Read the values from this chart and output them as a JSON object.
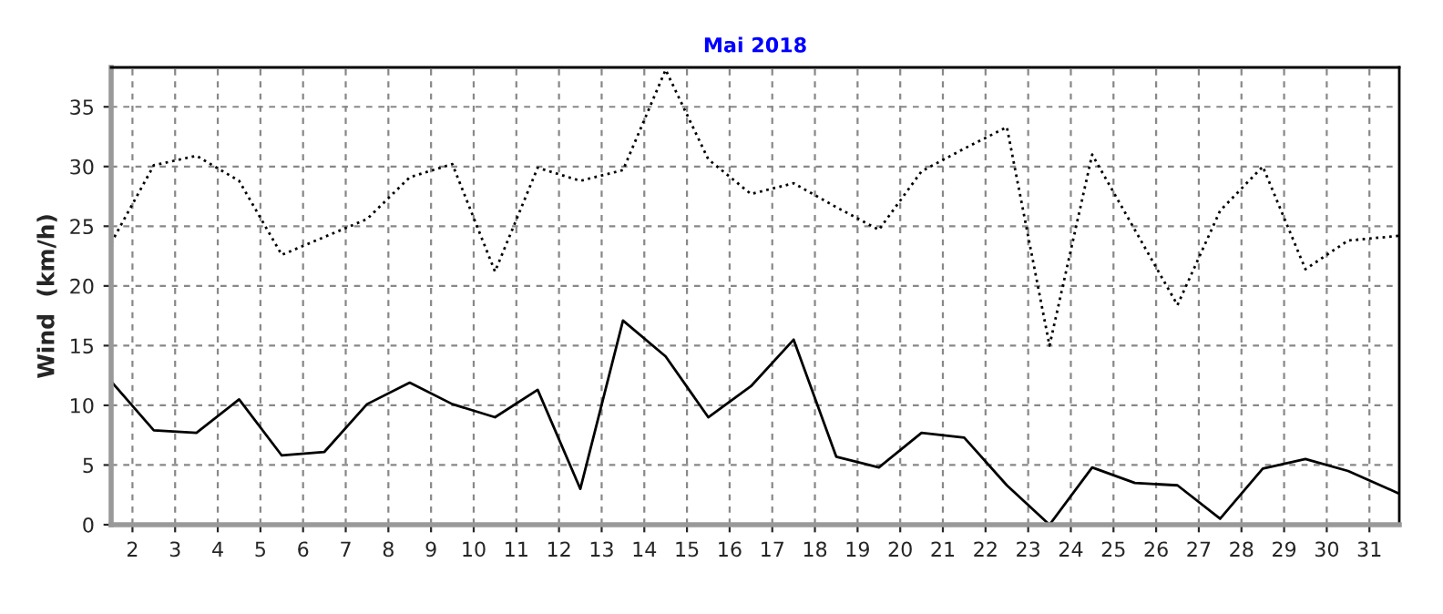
{
  "chart_data": {
    "type": "line",
    "title": "Mai 2018",
    "ylabel": "Wind  (km/h)",
    "x": [
      1.5,
      2.5,
      3.5,
      4.5,
      5.5,
      6.5,
      7.5,
      8.5,
      9.5,
      10.5,
      11.5,
      12.5,
      13.5,
      14.5,
      15.5,
      16.5,
      17.5,
      18.5,
      19.5,
      20.5,
      21.5,
      22.5,
      23.5,
      24.5,
      25.5,
      26.5,
      27.5,
      28.5,
      29.5,
      30.5,
      31.7
    ],
    "series": [
      {
        "color": "#000000",
        "line_style": "dotted",
        "values": [
          23.6,
          30.1,
          30.9,
          28.8,
          22.6,
          24.1,
          25.6,
          29.1,
          30.2,
          21.2,
          29.9,
          28.8,
          29.7,
          38.1,
          30.6,
          27.7,
          28.6,
          26.6,
          24.7,
          29.6,
          31.5,
          33.3,
          15.0,
          31.0,
          24.7,
          18.4,
          26.3,
          30.0,
          21.4,
          23.8,
          24.2
        ]
      },
      {
        "color": "#000000",
        "line_style": "solid",
        "values": [
          12.0,
          7.9,
          7.7,
          10.5,
          5.8,
          6.1,
          10.1,
          11.9,
          10.1,
          9.0,
          11.3,
          3.0,
          17.1,
          14.1,
          9.0,
          11.6,
          15.5,
          5.7,
          4.8,
          7.7,
          7.3,
          3.3,
          0,
          4.8,
          3.5,
          3.3,
          0.5,
          4.7,
          5.5,
          4.5,
          2.6
        ]
      }
    ],
    "xlim": [
      1.5,
      31.7
    ],
    "xticks": [
      2,
      3,
      4,
      5,
      6,
      7,
      8,
      9,
      10,
      11,
      12,
      13,
      14,
      15,
      16,
      17,
      18,
      19,
      20,
      21,
      22,
      23,
      24,
      25,
      26,
      27,
      28,
      29,
      30,
      31
    ],
    "ylim": [
      0,
      38.3
    ],
    "yticks": [
      0,
      5,
      10,
      15,
      20,
      25,
      30,
      35
    ],
    "grid": true
  }
}
